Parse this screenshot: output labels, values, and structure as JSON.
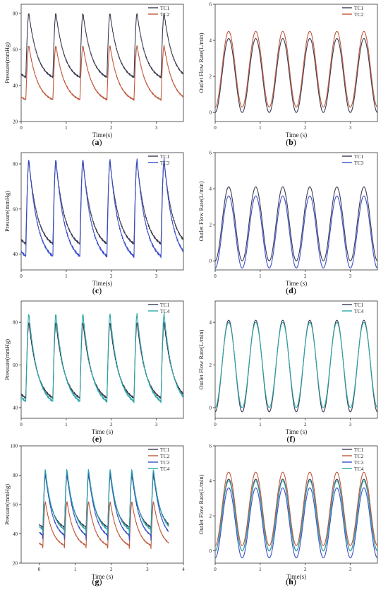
{
  "figure": {
    "captions": [
      "a",
      "b",
      "c",
      "d",
      "e",
      "f",
      "g",
      "h"
    ]
  },
  "series_colors": {
    "TC1": "#3a3a52",
    "TC2": "#c0573a",
    "TC3": "#3b4fc9",
    "TC4": "#2aa7a7"
  },
  "chart_data": [
    {
      "id": "a",
      "type": "line",
      "title": "",
      "xlabel": "Time(s)",
      "ylabel": "Pressure(mmHg)",
      "xlim": [
        0,
        3.6
      ],
      "ylim": [
        20,
        85
      ],
      "xticks": [
        0,
        1,
        2,
        3
      ],
      "yticks": [
        20,
        40,
        60,
        80
      ],
      "grid": false,
      "legend": "top-right",
      "period": 0.6,
      "series": [
        {
          "name": "TC1",
          "waveform": "pressure",
          "min": 42,
          "max": 80,
          "values": [
            42,
            80
          ]
        },
        {
          "name": "TC2",
          "waveform": "pressure",
          "min": 30,
          "max": 62,
          "values": [
            30,
            62
          ]
        }
      ]
    },
    {
      "id": "b",
      "type": "line",
      "title": "",
      "xlabel": "Time (s)",
      "ylabel": "Outlet Flow Rate(L/min)",
      "xlim": [
        0,
        3.6
      ],
      "ylim": [
        -0.5,
        6
      ],
      "xticks": [
        0,
        1,
        2,
        3
      ],
      "yticks": [
        0,
        2,
        4,
        6
      ],
      "grid": false,
      "legend": "top-right",
      "period": 0.6,
      "series": [
        {
          "name": "TC1",
          "waveform": "flow",
          "min": 0.0,
          "max": 4.1,
          "values": [
            0.0,
            4.1
          ]
        },
        {
          "name": "TC2",
          "waveform": "flow",
          "min": 0.3,
          "max": 4.5,
          "values": [
            0.3,
            4.5
          ]
        }
      ]
    },
    {
      "id": "c",
      "type": "line",
      "title": "",
      "xlabel": "Time(s)",
      "ylabel": "Pressure(mmHg)",
      "xlim": [
        0,
        3.6
      ],
      "ylim": [
        33,
        85
      ],
      "xticks": [
        0,
        1,
        2,
        3
      ],
      "yticks": [
        40,
        60,
        80
      ],
      "grid": false,
      "legend": "top-right",
      "period": 0.6,
      "series": [
        {
          "name": "TC1",
          "waveform": "pressure",
          "min": 42,
          "max": 81,
          "values": [
            42,
            81
          ]
        },
        {
          "name": "TC3",
          "waveform": "pressure",
          "min": 36,
          "max": 82,
          "values": [
            36,
            82
          ]
        }
      ]
    },
    {
      "id": "d",
      "type": "line",
      "title": "",
      "xlabel": "Time (s)",
      "ylabel": "Outlet Flow Rate(L/min)",
      "xlim": [
        0,
        3.6
      ],
      "ylim": [
        -0.5,
        6
      ],
      "xticks": [
        0,
        1,
        2,
        3
      ],
      "yticks": [
        0,
        2,
        4,
        6
      ],
      "grid": false,
      "legend": "top-right",
      "period": 0.6,
      "series": [
        {
          "name": "TC1",
          "waveform": "flow",
          "min": 0.0,
          "max": 4.1,
          "values": [
            0.0,
            4.1
          ]
        },
        {
          "name": "TC3",
          "waveform": "flow",
          "min": -0.4,
          "max": 3.6,
          "values": [
            -0.4,
            3.6
          ]
        }
      ]
    },
    {
      "id": "e",
      "type": "line",
      "title": "",
      "xlabel": "Time (s)",
      "ylabel": "Pressure(mmHg)",
      "xlim": [
        0,
        3.6
      ],
      "ylim": [
        35,
        90
      ],
      "xticks": [
        0,
        1,
        2,
        3
      ],
      "yticks": [
        40,
        60,
        80
      ],
      "grid": false,
      "legend": "top-right",
      "period": 0.6,
      "series": [
        {
          "name": "TC1",
          "waveform": "pressure",
          "min": 42,
          "max": 80,
          "values": [
            42,
            80
          ]
        },
        {
          "name": "TC4",
          "waveform": "pressure",
          "min": 40,
          "max": 84,
          "values": [
            40,
            84
          ]
        }
      ]
    },
    {
      "id": "f",
      "type": "line",
      "title": "",
      "xlabel": "Time (s)",
      "ylabel": "Outlet Flow Rate(L/min)",
      "xlim": [
        0,
        3.6
      ],
      "ylim": [
        -0.5,
        5
      ],
      "xticks": [
        0,
        1,
        2,
        3
      ],
      "yticks": [
        0,
        2,
        4
      ],
      "grid": false,
      "legend": "top-right",
      "period": 0.6,
      "series": [
        {
          "name": "TC1",
          "waveform": "flow",
          "min": -0.2,
          "max": 4.1,
          "values": [
            -0.2,
            4.1
          ]
        },
        {
          "name": "TC4",
          "waveform": "flow",
          "min": 0.0,
          "max": 4.0,
          "values": [
            0.0,
            4.0
          ]
        }
      ]
    },
    {
      "id": "g",
      "type": "line",
      "title": "",
      "xlabel": "Time (s)",
      "ylabel": "Pressure(mmHg)",
      "xlim": [
        -0.5,
        4
      ],
      "ylim": [
        20,
        100
      ],
      "xticks": [
        0,
        1,
        2,
        3,
        4
      ],
      "yticks": [
        20,
        40,
        60,
        80,
        100
      ],
      "grid": false,
      "legend": "top-right",
      "period": 0.6,
      "series": [
        {
          "name": "TC1",
          "waveform": "pressure",
          "min": 42,
          "max": 80,
          "values": [
            42,
            80
          ]
        },
        {
          "name": "TC2",
          "waveform": "pressure",
          "min": 30,
          "max": 62,
          "values": [
            30,
            62
          ]
        },
        {
          "name": "TC3",
          "waveform": "pressure",
          "min": 36,
          "max": 82,
          "values": [
            36,
            82
          ]
        },
        {
          "name": "TC4",
          "waveform": "pressure",
          "min": 40,
          "max": 84,
          "values": [
            40,
            84
          ]
        }
      ]
    },
    {
      "id": "h",
      "type": "line",
      "title": "",
      "xlabel": "Time(s)",
      "ylabel": "Outlet Flow Rate(L/min)",
      "xlim": [
        0,
        3.6
      ],
      "ylim": [
        -0.7,
        6
      ],
      "xticks": [
        0,
        1,
        2,
        3
      ],
      "yticks": [
        0,
        2,
        4,
        6
      ],
      "grid": false,
      "legend": "top-right",
      "period": 0.6,
      "series": [
        {
          "name": "TC1",
          "waveform": "flow",
          "min": 0.0,
          "max": 4.1,
          "values": [
            0.0,
            4.1
          ]
        },
        {
          "name": "TC2",
          "waveform": "flow",
          "min": 0.3,
          "max": 4.5,
          "values": [
            0.3,
            4.5
          ]
        },
        {
          "name": "TC3",
          "waveform": "flow",
          "min": -0.4,
          "max": 3.6,
          "values": [
            -0.4,
            3.6
          ]
        },
        {
          "name": "TC4",
          "waveform": "flow",
          "min": 0.0,
          "max": 4.0,
          "values": [
            0.0,
            4.0
          ]
        }
      ]
    }
  ]
}
